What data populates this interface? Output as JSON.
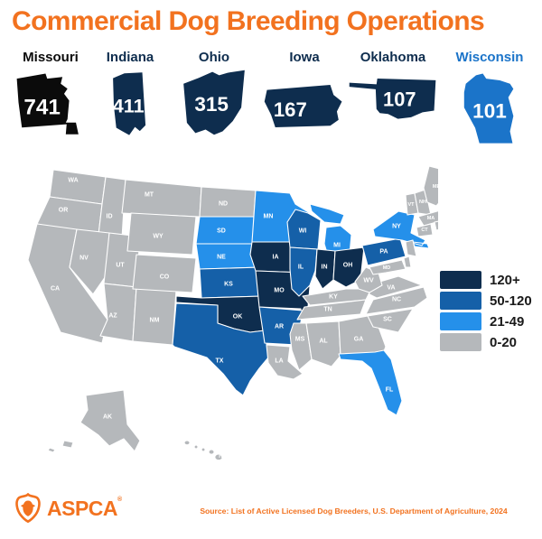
{
  "title": "Commercial Dog Breeding Operations",
  "colors": {
    "accent_orange": "#F2721F",
    "navy_120_plus": "#0E2D4E",
    "blue_50_120": "#1560A8",
    "blue_21_49": "#2590EA",
    "gray_0_20": "#B5B8BB",
    "missouri_black": "#0B0B0B",
    "wisconsin_blue": "#1B74C9",
    "legend_text": "#1A1A1A"
  },
  "top_states": [
    {
      "name": "Missouri",
      "value": "741",
      "fill": "missouri_black"
    },
    {
      "name": "Indiana",
      "value": "411",
      "fill": "navy_120_plus"
    },
    {
      "name": "Ohio",
      "value": "315",
      "fill": "navy_120_plus"
    },
    {
      "name": "Iowa",
      "value": "167",
      "fill": "navy_120_plus"
    },
    {
      "name": "Oklahoma",
      "value": "107",
      "fill": "navy_120_plus"
    },
    {
      "name": "Wisconsin",
      "value": "101",
      "fill": "wisconsin_blue"
    }
  ],
  "legend": [
    {
      "label": "120+",
      "color_key": "navy_120_plus"
    },
    {
      "label": "50-120",
      "color_key": "blue_50_120"
    },
    {
      "label": "21-49",
      "color_key": "blue_21_49"
    },
    {
      "label": "0-20",
      "color_key": "gray_0_20"
    }
  ],
  "chart_data": {
    "type": "heatmap",
    "title": "Commercial Dog Breeding Operations",
    "legend_bins": [
      "120+",
      "50-120",
      "21-49",
      "0-20"
    ],
    "labeled_values": {
      "Missouri": 741,
      "Indiana": 411,
      "Ohio": 315,
      "Iowa": 167,
      "Oklahoma": 107,
      "Wisconsin": 101
    }
  },
  "map": {
    "states": [
      {
        "abbr": "WA",
        "level": "0-20"
      },
      {
        "abbr": "OR",
        "level": "0-20"
      },
      {
        "abbr": "CA",
        "level": "0-20"
      },
      {
        "abbr": "ID",
        "level": "0-20"
      },
      {
        "abbr": "NV",
        "level": "0-20"
      },
      {
        "abbr": "UT",
        "level": "0-20"
      },
      {
        "abbr": "AZ",
        "level": "0-20"
      },
      {
        "abbr": "NM",
        "level": "0-20"
      },
      {
        "abbr": "MT",
        "level": "0-20"
      },
      {
        "abbr": "WY",
        "level": "0-20"
      },
      {
        "abbr": "CO",
        "level": "0-20"
      },
      {
        "abbr": "ND",
        "level": "0-20"
      },
      {
        "abbr": "SD",
        "level": "21-49"
      },
      {
        "abbr": "NE",
        "level": "21-49"
      },
      {
        "abbr": "KS",
        "level": "50-120"
      },
      {
        "abbr": "OK",
        "level": "120+"
      },
      {
        "abbr": "TX",
        "level": "50-120"
      },
      {
        "abbr": "MN",
        "level": "21-49"
      },
      {
        "abbr": "IA",
        "level": "120+"
      },
      {
        "abbr": "MO",
        "level": "120+"
      },
      {
        "abbr": "AR",
        "level": "50-120"
      },
      {
        "abbr": "LA",
        "level": "0-20"
      },
      {
        "abbr": "WI",
        "level": "50-120"
      },
      {
        "abbr": "IL",
        "level": "50-120"
      },
      {
        "abbr": "MI",
        "level": "21-49"
      },
      {
        "abbr": "IN",
        "level": "120+"
      },
      {
        "abbr": "OH",
        "level": "120+"
      },
      {
        "abbr": "KY",
        "level": "0-20"
      },
      {
        "abbr": "TN",
        "level": "0-20"
      },
      {
        "abbr": "MS",
        "level": "0-20"
      },
      {
        "abbr": "AL",
        "level": "0-20"
      },
      {
        "abbr": "GA",
        "level": "0-20"
      },
      {
        "abbr": "FL",
        "level": "21-49"
      },
      {
        "abbr": "SC",
        "level": "0-20"
      },
      {
        "abbr": "NC",
        "level": "0-20"
      },
      {
        "abbr": "VA",
        "level": "0-20"
      },
      {
        "abbr": "WV",
        "level": "0-20"
      },
      {
        "abbr": "PA",
        "level": "50-120"
      },
      {
        "abbr": "NY",
        "level": "21-49"
      },
      {
        "abbr": "NJ",
        "level": "0-20"
      },
      {
        "abbr": "MD",
        "level": "0-20"
      },
      {
        "abbr": "DE",
        "level": "0-20"
      },
      {
        "abbr": "VT",
        "level": "0-20"
      },
      {
        "abbr": "NH",
        "level": "0-20"
      },
      {
        "abbr": "MA",
        "level": "0-20"
      },
      {
        "abbr": "CT",
        "level": "0-20"
      },
      {
        "abbr": "RI",
        "level": "0-20"
      },
      {
        "abbr": "ME",
        "level": "0-20"
      },
      {
        "abbr": "AK",
        "level": "0-20"
      },
      {
        "abbr": "HI",
        "level": "0-20"
      }
    ]
  },
  "footer": {
    "brand": "ASPCA",
    "trademark": "®",
    "source": "Source: List of Active Licensed Dog Breeders, U.S. Department of Agriculture, 2024"
  }
}
